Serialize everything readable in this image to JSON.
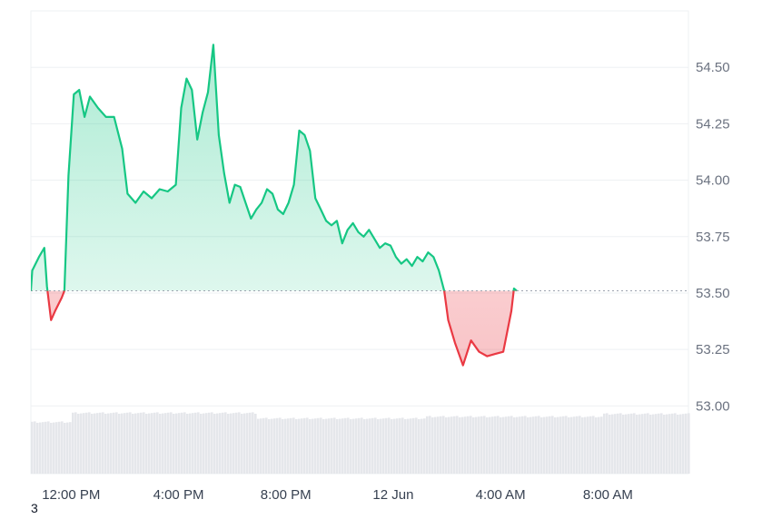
{
  "footnote": "3",
  "chart_data": {
    "type": "area",
    "baseline": 53.51,
    "ylim": [
      52.7,
      54.75
    ],
    "y_ticks": [
      {
        "value": 54.5,
        "label": "54.50"
      },
      {
        "value": 54.25,
        "label": "54.25"
      },
      {
        "value": 54.0,
        "label": "54.00"
      },
      {
        "value": 53.75,
        "label": "53.75"
      },
      {
        "value": 53.5,
        "label": "53.50"
      },
      {
        "value": 53.25,
        "label": "53.25"
      },
      {
        "value": 53.0,
        "label": "53.00"
      }
    ],
    "x_ticks": [
      {
        "t": 0.0,
        "label": "12:00 PM"
      },
      {
        "t": 4.0,
        "label": "4:00 PM"
      },
      {
        "t": 8.0,
        "label": "8:00 PM"
      },
      {
        "t": 12.0,
        "label": "12 Jun"
      },
      {
        "t": 16.0,
        "label": "4:00 AM"
      },
      {
        "t": 20.0,
        "label": "8:00 AM"
      }
    ],
    "x_range": [
      -1.5,
      23.0
    ],
    "colors": {
      "up": "#16c784",
      "down": "#ea3943",
      "baseline": "#9ca3af",
      "volume": "#e5e7eb",
      "grid": "#eef0f3"
    },
    "price": [
      [
        -1.5,
        53.51
      ],
      [
        -1.45,
        53.6
      ],
      [
        -1.2,
        53.66
      ],
      [
        -1.0,
        53.7
      ],
      [
        -0.9,
        53.53
      ],
      [
        -0.75,
        53.38
      ],
      [
        -0.6,
        53.42
      ],
      [
        -0.35,
        53.48
      ],
      [
        -0.25,
        53.51
      ],
      [
        -0.1,
        54.02
      ],
      [
        0.1,
        54.38
      ],
      [
        0.3,
        54.4
      ],
      [
        0.5,
        54.28
      ],
      [
        0.7,
        54.37
      ],
      [
        1.0,
        54.32
      ],
      [
        1.3,
        54.28
      ],
      [
        1.6,
        54.28
      ],
      [
        1.9,
        54.14
      ],
      [
        2.1,
        53.94
      ],
      [
        2.4,
        53.9
      ],
      [
        2.7,
        53.95
      ],
      [
        3.0,
        53.92
      ],
      [
        3.3,
        53.96
      ],
      [
        3.6,
        53.95
      ],
      [
        3.9,
        53.98
      ],
      [
        4.1,
        54.32
      ],
      [
        4.3,
        54.45
      ],
      [
        4.5,
        54.4
      ],
      [
        4.7,
        54.18
      ],
      [
        4.9,
        54.3
      ],
      [
        5.1,
        54.39
      ],
      [
        5.3,
        54.6
      ],
      [
        5.5,
        54.2
      ],
      [
        5.7,
        54.03
      ],
      [
        5.9,
        53.9
      ],
      [
        6.1,
        53.98
      ],
      [
        6.3,
        53.97
      ],
      [
        6.5,
        53.9
      ],
      [
        6.7,
        53.83
      ],
      [
        6.9,
        53.87
      ],
      [
        7.1,
        53.9
      ],
      [
        7.3,
        53.96
      ],
      [
        7.5,
        53.94
      ],
      [
        7.7,
        53.87
      ],
      [
        7.9,
        53.85
      ],
      [
        8.1,
        53.9
      ],
      [
        8.3,
        53.98
      ],
      [
        8.5,
        54.22
      ],
      [
        8.7,
        54.2
      ],
      [
        8.9,
        54.13
      ],
      [
        9.1,
        53.92
      ],
      [
        9.3,
        53.87
      ],
      [
        9.5,
        53.82
      ],
      [
        9.7,
        53.8
      ],
      [
        9.9,
        53.82
      ],
      [
        10.1,
        53.72
      ],
      [
        10.3,
        53.78
      ],
      [
        10.5,
        53.81
      ],
      [
        10.7,
        53.77
      ],
      [
        10.9,
        53.75
      ],
      [
        11.1,
        53.78
      ],
      [
        11.3,
        53.74
      ],
      [
        11.5,
        53.7
      ],
      [
        11.7,
        53.72
      ],
      [
        11.9,
        53.71
      ],
      [
        12.1,
        53.66
      ],
      [
        12.3,
        53.63
      ],
      [
        12.5,
        53.65
      ],
      [
        12.7,
        53.62
      ],
      [
        12.9,
        53.66
      ],
      [
        13.1,
        53.64
      ],
      [
        13.3,
        53.68
      ],
      [
        13.5,
        53.66
      ],
      [
        13.7,
        53.6
      ],
      [
        13.9,
        53.51
      ],
      [
        14.05,
        53.38
      ],
      [
        14.3,
        53.28
      ],
      [
        14.6,
        53.18
      ],
      [
        14.9,
        53.29
      ],
      [
        15.2,
        53.24
      ],
      [
        15.5,
        53.22
      ],
      [
        15.8,
        53.23
      ],
      [
        16.1,
        53.24
      ],
      [
        16.4,
        53.42
      ],
      [
        16.5,
        53.52
      ],
      [
        16.6,
        53.51
      ]
    ]
  }
}
